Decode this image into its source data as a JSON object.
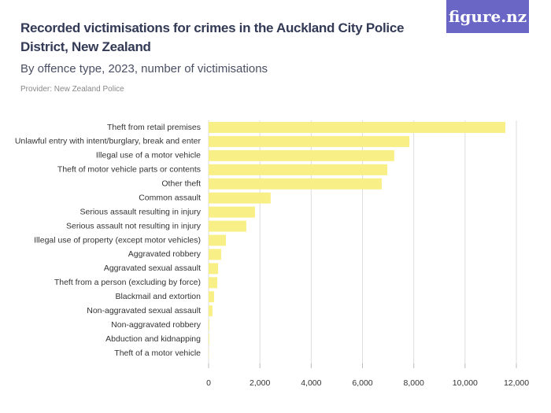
{
  "brand": "figure.nz",
  "chart_data": {
    "type": "bar",
    "orientation": "horizontal",
    "title": "Recorded victimisations for crimes in the Auckland City Police District, New Zealand",
    "subtitle": "By offence type, 2023, number of victimisations",
    "source": "Provider: New Zealand Police",
    "categories": [
      "Theft from retail premises",
      "Unlawful entry with intent/burglary, break and enter",
      "Illegal use of a motor vehicle",
      "Theft of motor vehicle parts or contents",
      "Other theft",
      "Common assault",
      "Serious assault resulting in injury",
      "Serious assault not resulting in injury",
      "Illegal use of property (except motor vehicles)",
      "Aggravated robbery",
      "Aggravated sexual assault",
      "Theft from a person (excluding by force)",
      "Blackmail and extortion",
      "Non-aggravated sexual assault",
      "Non-aggravated robbery",
      "Abduction and kidnapping",
      "Theft of a motor vehicle"
    ],
    "values": [
      11570,
      7830,
      7240,
      6970,
      6750,
      2420,
      1810,
      1470,
      675,
      490,
      370,
      340,
      215,
      150,
      30,
      25,
      10
    ],
    "color": "#f8f087",
    "xlim": [
      0,
      12000
    ],
    "xticks": [
      0,
      {
        "value": 2000,
        "label": "2,000"
      },
      {
        "value": 4000,
        "label": "4,000"
      },
      {
        "value": 6000,
        "label": "6,000"
      },
      {
        "value": 8000,
        "label": "8,000"
      },
      {
        "value": 10000,
        "label": "10,000"
      },
      {
        "value": 12000,
        "label": "12,000"
      }
    ],
    "grid": true
  }
}
